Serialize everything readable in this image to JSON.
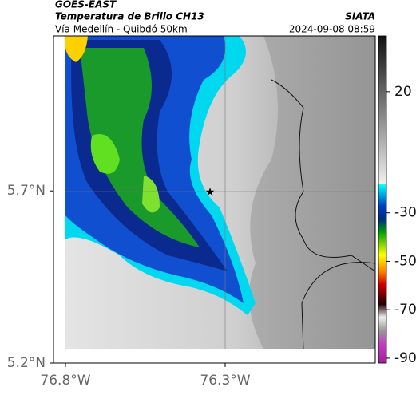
{
  "header": {
    "satellite": "GOES-EAST",
    "product": "Temperatura de Brillo CH13",
    "region": "Vía Medellín - Quibdó 50km",
    "source": "SIATA",
    "timestamp": "2024-09-08 08:59"
  },
  "map": {
    "lat_range": [
      5.2,
      6.15
    ],
    "lon_range": [
      -76.8,
      -75.83
    ],
    "lat_ticks": [
      {
        "value": 5.7,
        "label": "5.7°N"
      },
      {
        "value": 5.2,
        "label": "5.2°N"
      }
    ],
    "lon_ticks": [
      {
        "value": -76.8,
        "label": "76.8°W"
      },
      {
        "value": -76.3,
        "label": "76.3°W"
      }
    ]
  },
  "colorbar": {
    "range": [
      -92,
      43
    ],
    "ticks": [
      20,
      -30,
      -50,
      -70,
      -90
    ]
  }
}
